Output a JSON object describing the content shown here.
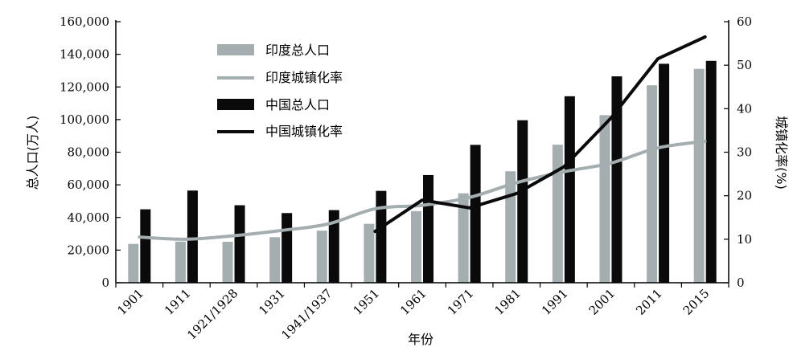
{
  "chart_data": {
    "type": "bar",
    "categories": [
      "1901",
      "1911",
      "1921/1928",
      "1931",
      "1941/1937",
      "1951",
      "1961",
      "1971",
      "1981",
      "1991",
      "2001",
      "2011",
      "2015"
    ],
    "xlabel": "年份",
    "ylabel_left": "总人口(万人)",
    "ylabel_right": "城镇化率(%)",
    "ylim_left": [
      0,
      160000
    ],
    "yticks_left": [
      "0",
      "20,000",
      "40,000",
      "60,000",
      "80,000",
      "100,000",
      "120,000",
      "140,000",
      "160,000"
    ],
    "ylim_right": [
      0,
      60
    ],
    "yticks_right": [
      "0",
      "10",
      "20",
      "30",
      "40",
      "50",
      "60"
    ],
    "grid": false,
    "legend_position": "top-left",
    "series": [
      {
        "name": "印度总人口",
        "kind": "bar",
        "axis": "left",
        "color": "#a4adb0",
        "values": [
          23800,
          25200,
          25100,
          27900,
          31900,
          36100,
          43900,
          54800,
          68300,
          84600,
          102700,
          121000,
          131100
        ]
      },
      {
        "name": "印度城镇化率",
        "kind": "line",
        "axis": "right",
        "color": "#a4adb0",
        "values": [
          10.5,
          10.0,
          10.8,
          12.0,
          13.5,
          17.0,
          17.8,
          19.6,
          23.0,
          25.5,
          27.5,
          31.0,
          32.5
        ]
      },
      {
        "name": "中国总人口",
        "kind": "bar",
        "axis": "left",
        "color": "#0a0a0a",
        "values": [
          45000,
          56500,
          47500,
          42700,
          44500,
          56300,
          66000,
          84500,
          99600,
          114300,
          126500,
          134200,
          136000
        ]
      },
      {
        "name": "中国城镇化率",
        "kind": "line",
        "axis": "right",
        "color": "#0a0a0a",
        "values": [
          null,
          null,
          null,
          null,
          null,
          11.8,
          19.0,
          17.2,
          20.5,
          26.6,
          37.8,
          51.5,
          56.5
        ]
      }
    ]
  }
}
